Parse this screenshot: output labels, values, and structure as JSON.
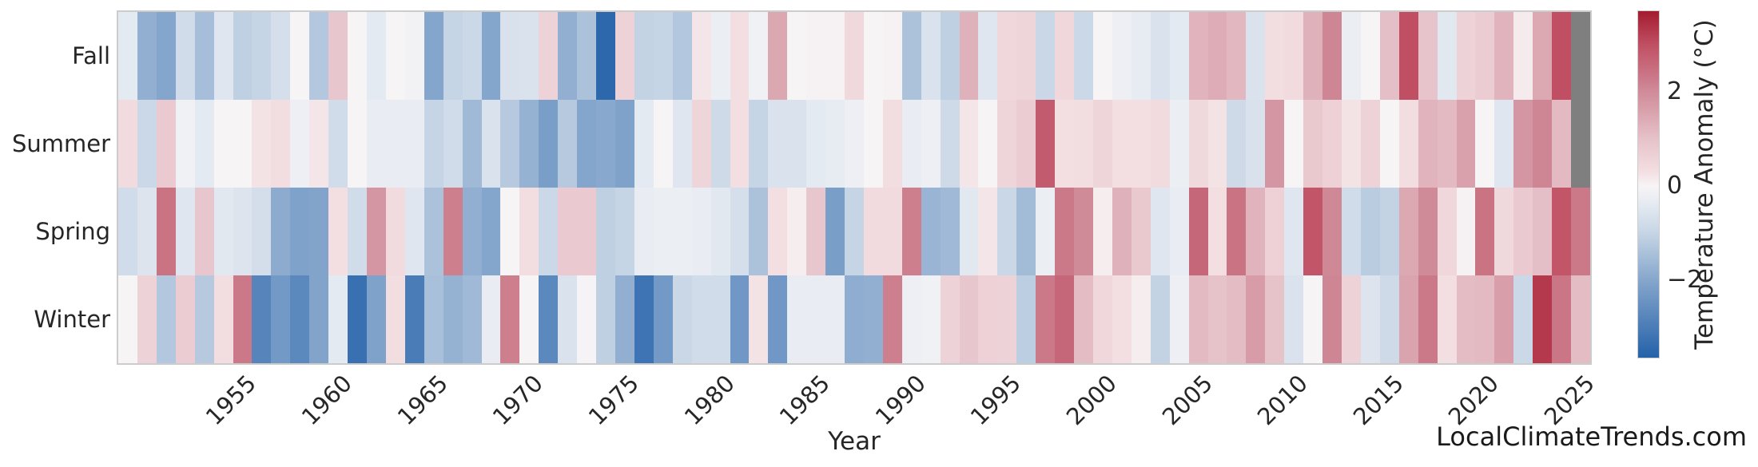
{
  "figure": {
    "background": "#ffffff"
  },
  "watermark": "LocalClimateTrends.com",
  "chart_data": {
    "type": "heatmap",
    "xlabel": "Year",
    "rows": [
      "Fall",
      "Summer",
      "Spring",
      "Winter"
    ],
    "years": [
      1949,
      1950,
      1951,
      1952,
      1953,
      1954,
      1955,
      1956,
      1957,
      1958,
      1959,
      1960,
      1961,
      1962,
      1963,
      1964,
      1965,
      1966,
      1967,
      1968,
      1969,
      1970,
      1971,
      1972,
      1973,
      1974,
      1975,
      1976,
      1977,
      1978,
      1979,
      1980,
      1981,
      1982,
      1983,
      1984,
      1985,
      1986,
      1987,
      1988,
      1989,
      1990,
      1991,
      1992,
      1993,
      1994,
      1995,
      1996,
      1997,
      1998,
      1999,
      2000,
      2001,
      2002,
      2003,
      2004,
      2005,
      2006,
      2007,
      2008,
      2009,
      2010,
      2011,
      2012,
      2013,
      2014,
      2015,
      2016,
      2017,
      2018,
      2019,
      2020,
      2021,
      2022,
      2023,
      2024,
      2025
    ],
    "x_tick_years": [
      1955,
      1960,
      1965,
      1970,
      1975,
      1980,
      1985,
      1990,
      1995,
      2000,
      2005,
      2010,
      2015,
      2020,
      2025
    ],
    "series": [
      {
        "name": "Fall",
        "values": [
          -0.4,
          -1.8,
          -2.0,
          -0.8,
          -1.5,
          -0.5,
          -1.1,
          -1.0,
          -0.7,
          0.0,
          -1.3,
          0.9,
          0.0,
          -0.4,
          0.0,
          -0.1,
          -2.0,
          -1.0,
          -0.9,
          -2.0,
          -0.65,
          -0.6,
          0.6,
          -1.8,
          -1.4,
          -3.5,
          0.6,
          -1.05,
          -1.0,
          -1.3,
          0.2,
          -0.25,
          0.3,
          -0.15,
          1.5,
          0.0,
          0.05,
          0.05,
          0.45,
          0.0,
          0.05,
          -1.4,
          -0.6,
          -1.1,
          1.3,
          -0.5,
          0.5,
          0.55,
          -0.95,
          0.5,
          -0.9,
          0.0,
          -0.2,
          -0.35,
          -0.6,
          -0.4,
          1.25,
          1.4,
          1.2,
          -0.6,
          0.35,
          0.4,
          1.3,
          2.1,
          -0.25,
          0.0,
          1.05,
          3.0,
          0.95,
          -0.45,
          0.6,
          0.75,
          1.25,
          0.15,
          1.45,
          3.0,
          null
        ]
      },
      {
        "name": "Summer",
        "values": [
          0.4,
          -0.9,
          0.8,
          -0.15,
          -0.4,
          0.0,
          0.0,
          0.25,
          0.35,
          -0.2,
          0.2,
          -0.8,
          0.0,
          -0.3,
          -0.3,
          -0.3,
          -1.0,
          -0.8,
          -1.6,
          -0.6,
          -1.25,
          -1.75,
          -2.2,
          -1.25,
          -2.0,
          -1.95,
          -2.1,
          -0.4,
          0.0,
          -0.5,
          0.55,
          -0.85,
          0.3,
          -1.0,
          -0.6,
          -0.6,
          -0.4,
          -0.35,
          -0.2,
          0.0,
          0.35,
          -0.3,
          -0.2,
          -0.85,
          0.2,
          0.0,
          0.55,
          0.75,
          2.8,
          0.3,
          0.35,
          0.55,
          0.3,
          0.3,
          0.4,
          -0.25,
          0.45,
          0.25,
          -0.85,
          -0.65,
          1.8,
          0.0,
          0.85,
          0.65,
          0.25,
          0.6,
          0.0,
          0.35,
          1.25,
          1.15,
          1.6,
          0.0,
          -0.5,
          1.8,
          2.1,
          1.15,
          null
        ]
      },
      {
        "name": "Spring",
        "values": [
          -0.8,
          -0.55,
          2.4,
          -0.5,
          0.9,
          -0.45,
          -0.55,
          -0.75,
          -1.9,
          -2.1,
          -2.05,
          0.3,
          -0.8,
          1.8,
          0.4,
          -0.5,
          -1.4,
          2.2,
          -1.8,
          -2.0,
          0.0,
          0.35,
          -0.9,
          0.8,
          0.8,
          -1.1,
          -1.0,
          -0.3,
          -0.25,
          -0.25,
          -0.3,
          -0.45,
          -0.7,
          -1.4,
          0.3,
          0.1,
          0.9,
          -2.2,
          -1.0,
          0.4,
          0.4,
          2.2,
          -1.7,
          -1.6,
          -0.45,
          0.2,
          -0.95,
          -1.55,
          -0.25,
          2.3,
          2.0,
          0.1,
          1.3,
          0.85,
          -0.5,
          -0.3,
          2.6,
          0.3,
          2.4,
          1.25,
          0.65,
          -0.5,
          2.9,
          2.05,
          -0.8,
          -1.2,
          -1.05,
          1.45,
          2.0,
          0.5,
          0.05,
          2.4,
          0.45,
          0.8,
          1.05,
          2.9,
          2.3
        ]
      },
      {
        "name": "Winter",
        "values": [
          0.0,
          0.6,
          -1.3,
          0.75,
          -1.25,
          0.35,
          2.3,
          -2.8,
          -2.3,
          -2.7,
          -2.05,
          -0.4,
          -3.3,
          -2.1,
          0.35,
          -3.0,
          -1.45,
          -1.75,
          -1.6,
          -0.3,
          2.2,
          0.0,
          -2.7,
          -0.6,
          -0.05,
          -1.1,
          -1.8,
          -3.2,
          -2.3,
          -0.95,
          -0.8,
          -0.8,
          -2.35,
          0.25,
          -2.35,
          -0.3,
          -0.3,
          -0.3,
          -1.85,
          -1.8,
          2.2,
          -0.2,
          -0.15,
          0.6,
          0.9,
          0.65,
          0.6,
          -1.15,
          2.3,
          2.6,
          1.1,
          0.5,
          0.3,
          0.1,
          -1.05,
          -0.2,
          1.15,
          1.0,
          1.1,
          1.7,
          1.0,
          -0.6,
          0.0,
          2.1,
          0.6,
          -0.55,
          -0.85,
          1.55,
          2.3,
          0.3,
          1.1,
          1.15,
          1.65,
          -0.9,
          3.3,
          2.35,
          1.1
        ]
      }
    ],
    "colorbar": {
      "label": "Temperature Anomaly (°C)",
      "ticks": [
        {
          "label": "2",
          "value": 2
        },
        {
          "label": "0",
          "value": 0
        },
        {
          "label": "−2",
          "value": -2
        }
      ],
      "vmax": 3.71,
      "vmin": -3.64
    },
    "missing_color": "#7f7f7f",
    "color_anchors": [
      [
        3.7,
        "#a41c30"
      ],
      [
        3.0,
        "#c04f63"
      ],
      [
        2.0,
        "#d08b99"
      ],
      [
        1.0,
        "#e6c2c9"
      ],
      [
        0.3,
        "#f3dfe2"
      ],
      [
        0.0,
        "#f7f4f5"
      ],
      [
        -0.3,
        "#e9edf3"
      ],
      [
        -1.0,
        "#c6d5e5"
      ],
      [
        -2.0,
        "#85a6cc"
      ],
      [
        -3.0,
        "#4a7cb7"
      ],
      [
        -3.7,
        "#2160a8"
      ]
    ],
    "legend_position": "right-colorbar",
    "grid": false
  }
}
